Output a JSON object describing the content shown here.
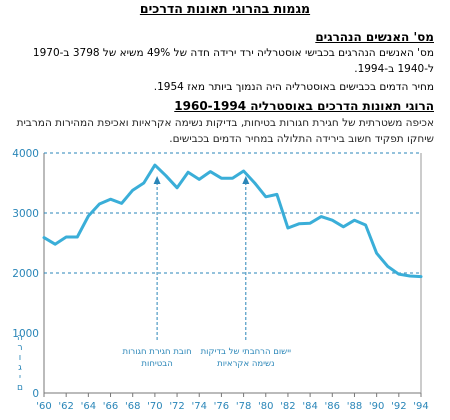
{
  "page": {
    "title": "מגמות בהרוגי תאונות הדרכים",
    "section1": {
      "heading": "מס' האנשים הנהרגים",
      "line1": "מס' האנשים הנהרגים בכבישי אוסטרליה ירד ירידה חדה של 49% משיא של 3798 ב-1970 ל-1940 ב-1994.",
      "line2": "מחיר הדמים בכבישים באוסטרליה היה הנמוך ביותר מאז 1954."
    },
    "section2": {
      "heading": "הרוגי תאונות הדרכים באוסטרליה 1960-1994",
      "text": "אכיפה משטרתית של חגירת חגורות בטיחות, בדיקות נשימה אקראיות ואכיפת המהירות המרבית שיחקו תפקיד חשוב בירידה התלולה במחיר הדמים בכבישים."
    }
  },
  "chart_data": {
    "type": "line",
    "title": "",
    "xlabel": "",
    "ylabel": "הרוגים",
    "xlim": [
      1960,
      1994
    ],
    "ylim": [
      0,
      4000
    ],
    "yticks": [
      0,
      1000,
      2000,
      3000,
      4000
    ],
    "xtick_labels": [
      "'60",
      "'62",
      "'64",
      "'66",
      "'68",
      "'70",
      "'72",
      "'74",
      "'76",
      "'78",
      "'80",
      "'82",
      "'84",
      "'86",
      "'88",
      "'90",
      "'92",
      "'94"
    ],
    "gridlines_y": [
      2000,
      3000,
      4000
    ],
    "series": [
      {
        "name": "",
        "color": "#3aaed8",
        "x": [
          1960,
          1961,
          1962,
          1963,
          1964,
          1965,
          1966,
          1967,
          1968,
          1969,
          1970,
          1971,
          1972,
          1973,
          1974,
          1975,
          1976,
          1977,
          1978,
          1979,
          1980,
          1981,
          1982,
          1983,
          1984,
          1985,
          1986,
          1987,
          1988,
          1989,
          1990,
          1991,
          1992,
          1993,
          1994
        ],
        "y": [
          2590,
          2480,
          2600,
          2600,
          2950,
          3150,
          3230,
          3160,
          3380,
          3500,
          3798,
          3620,
          3420,
          3680,
          3560,
          3690,
          3580,
          3580,
          3700,
          3500,
          3270,
          3310,
          2750,
          2820,
          2830,
          2940,
          2880,
          2770,
          2880,
          2800,
          2330,
          2110,
          1980,
          1950,
          1940
        ]
      }
    ],
    "annotations": [
      {
        "x": 1970.2,
        "label": [
          "חובת חגירת חגורות",
          "הבטיחות"
        ]
      },
      {
        "x": 1978.2,
        "label": [
          "יישום הרחבתי של בדיקות",
          "נשימה אקראיות"
        ]
      }
    ],
    "colors": {
      "line": "#3aaed8",
      "grid": "#2a86b8",
      "text": "#2a86b8"
    }
  }
}
